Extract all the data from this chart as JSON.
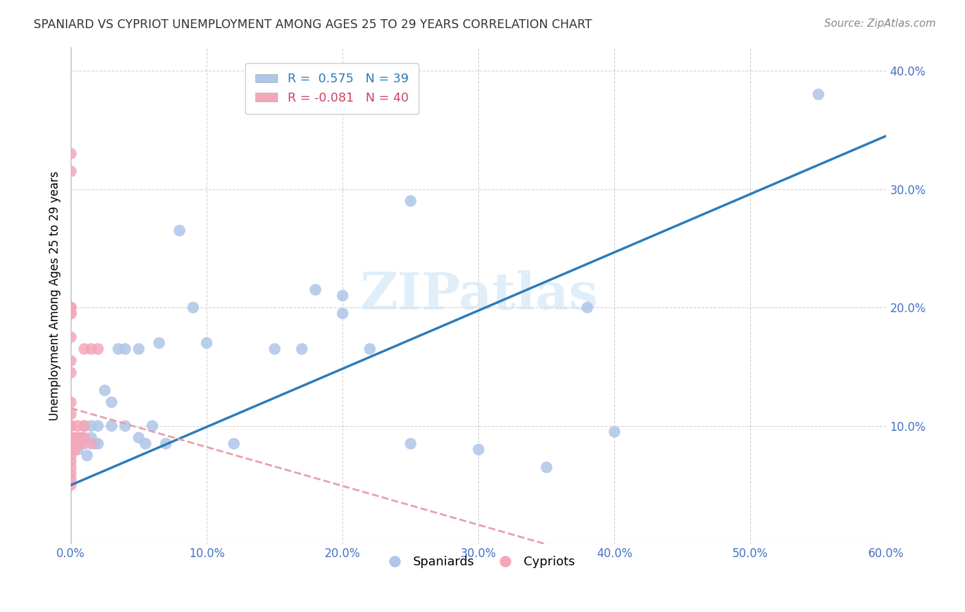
{
  "title": "SPANIARD VS CYPRIOT UNEMPLOYMENT AMONG AGES 25 TO 29 YEARS CORRELATION CHART",
  "source": "Source: ZipAtlas.com",
  "ylabel": "Unemployment Among Ages 25 to 29 years",
  "xlim": [
    0.0,
    0.6
  ],
  "ylim": [
    0.0,
    0.42
  ],
  "xticks": [
    0.0,
    0.1,
    0.2,
    0.3,
    0.4,
    0.5,
    0.6
  ],
  "yticks": [
    0.1,
    0.2,
    0.3,
    0.4
  ],
  "legend_r_spaniard": "0.575",
  "legend_n_spaniard": "39",
  "legend_r_cypriot": "-0.081",
  "legend_n_cypriot": "40",
  "spaniard_color": "#aec6e8",
  "cypriot_color": "#f4a7b9",
  "spaniard_line_color": "#2b7bba",
  "cypriot_line_color": "#e8a0a8",
  "watermark": "ZIPatlas",
  "spaniard_x": [
    0.005,
    0.008,
    0.01,
    0.01,
    0.012,
    0.015,
    0.015,
    0.018,
    0.02,
    0.02,
    0.025,
    0.03,
    0.03,
    0.035,
    0.04,
    0.04,
    0.05,
    0.05,
    0.055,
    0.06,
    0.065,
    0.07,
    0.08,
    0.09,
    0.1,
    0.12,
    0.15,
    0.17,
    0.18,
    0.2,
    0.2,
    0.22,
    0.25,
    0.25,
    0.3,
    0.35,
    0.38,
    0.4,
    0.55
  ],
  "spaniard_y": [
    0.08,
    0.09,
    0.085,
    0.1,
    0.075,
    0.09,
    0.1,
    0.085,
    0.085,
    0.1,
    0.13,
    0.1,
    0.12,
    0.165,
    0.1,
    0.165,
    0.09,
    0.165,
    0.085,
    0.1,
    0.17,
    0.085,
    0.265,
    0.2,
    0.17,
    0.085,
    0.165,
    0.165,
    0.215,
    0.195,
    0.21,
    0.165,
    0.085,
    0.29,
    0.08,
    0.065,
    0.2,
    0.095,
    0.38
  ],
  "cypriot_x": [
    0.0,
    0.0,
    0.0,
    0.0,
    0.0,
    0.0,
    0.0,
    0.0,
    0.0,
    0.0,
    0.0,
    0.0,
    0.0,
    0.0,
    0.0,
    0.0,
    0.0,
    0.0,
    0.0,
    0.0,
    0.0,
    0.0,
    0.0,
    0.0,
    0.0,
    0.003,
    0.003,
    0.005,
    0.005,
    0.005,
    0.007,
    0.007,
    0.01,
    0.01,
    0.01,
    0.015,
    0.015,
    0.02,
    0.0,
    0.0
  ],
  "cypriot_y": [
    0.05,
    0.055,
    0.06,
    0.065,
    0.07,
    0.075,
    0.08,
    0.08,
    0.08,
    0.09,
    0.09,
    0.09,
    0.1,
    0.1,
    0.1,
    0.1,
    0.11,
    0.12,
    0.145,
    0.155,
    0.175,
    0.195,
    0.2,
    0.2,
    0.315,
    0.08,
    0.09,
    0.085,
    0.09,
    0.1,
    0.085,
    0.09,
    0.09,
    0.1,
    0.165,
    0.085,
    0.165,
    0.165,
    0.33,
    0.195
  ],
  "spaniard_line_x0": 0.0,
  "spaniard_line_y0": 0.05,
  "spaniard_line_x1": 0.6,
  "spaniard_line_y1": 0.345,
  "cypriot_line_x0": 0.0,
  "cypriot_line_y0": 0.115,
  "cypriot_line_x1": 0.35,
  "cypriot_line_y1": 0.0
}
